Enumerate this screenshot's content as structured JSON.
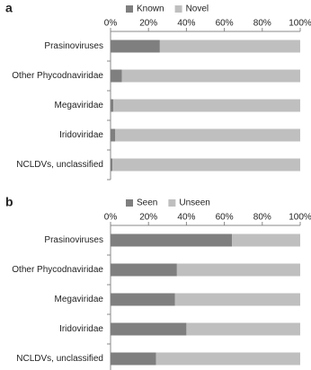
{
  "chart_data": [
    {
      "type": "bar",
      "orientation": "horizontal",
      "stacked": true,
      "panel_label": "a",
      "categories": [
        "Prasinoviruses",
        "Other Phycodnaviridae",
        "Megaviridae",
        "Iridoviridae",
        "NCLDVs, unclassified"
      ],
      "series": [
        {
          "name": "Known",
          "color": "#7f7f7f",
          "values": [
            26,
            6,
            1.5,
            2.5,
            1
          ]
        },
        {
          "name": "Novel",
          "color": "#bfbfbf",
          "values": [
            74,
            94,
            98.5,
            97.5,
            99
          ]
        }
      ],
      "xlim": [
        0,
        100
      ],
      "xticks": [
        {
          "value": 0,
          "label": "0%"
        },
        {
          "value": 20,
          "label": "20%"
        },
        {
          "value": 40,
          "label": "40%"
        },
        {
          "value": 60,
          "label": "60%"
        },
        {
          "value": 80,
          "label": "80%"
        },
        {
          "value": 100,
          "label": "100%"
        }
      ]
    },
    {
      "type": "bar",
      "orientation": "horizontal",
      "stacked": true,
      "panel_label": "b",
      "categories": [
        "Prasinoviruses",
        "Other Phycodnaviridae",
        "Megaviridae",
        "Iridoviridae",
        "NCLDVs, unclassified"
      ],
      "series": [
        {
          "name": "Seen",
          "color": "#7f7f7f",
          "values": [
            64,
            35,
            34,
            40,
            24
          ]
        },
        {
          "name": "Unseen",
          "color": "#bfbfbf",
          "values": [
            36,
            65,
            66,
            60,
            76
          ]
        }
      ],
      "xlim": [
        0,
        100
      ],
      "xticks": [
        {
          "value": 0,
          "label": "0%"
        },
        {
          "value": 20,
          "label": "20%"
        },
        {
          "value": 40,
          "label": "40%"
        },
        {
          "value": 60,
          "label": "60%"
        },
        {
          "value": 80,
          "label": "80%"
        },
        {
          "value": 100,
          "label": "100%"
        }
      ]
    }
  ]
}
